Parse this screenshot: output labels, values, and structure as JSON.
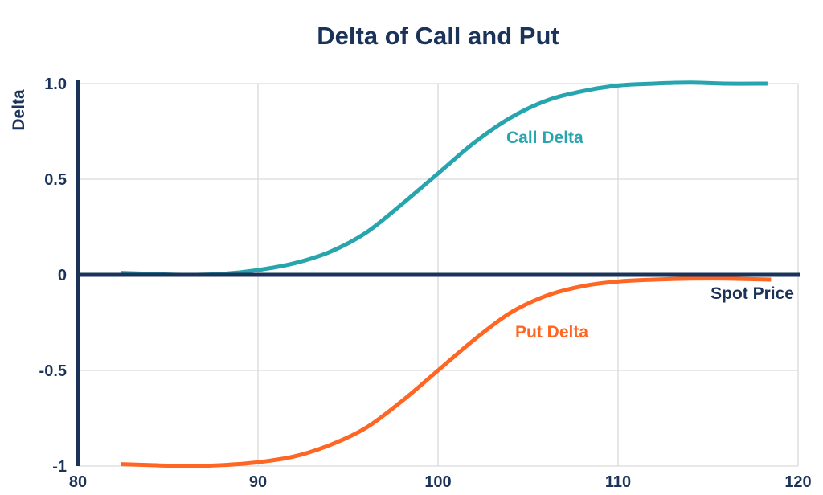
{
  "chart_data": {
    "type": "line",
    "title": "Delta of Call and Put",
    "xlabel": "Spot Price",
    "ylabel": "Delta",
    "xlim": [
      80,
      120
    ],
    "ylim": [
      -1,
      1
    ],
    "x_ticks": [
      "80",
      "90",
      "100",
      "110",
      "120"
    ],
    "y_ticks": [
      "-1",
      "-0.5",
      "0",
      "0.5",
      "1.0"
    ],
    "grid": true,
    "series": [
      {
        "name": "Call Delta",
        "color": "#26A5AE",
        "x": [
          82.4,
          84,
          86,
          88,
          90,
          92,
          94,
          96,
          98,
          100,
          102,
          104,
          106,
          108,
          110,
          112,
          114,
          116,
          118.3
        ],
        "y": [
          0.01,
          0.005,
          0.0,
          0.005,
          0.025,
          0.06,
          0.12,
          0.22,
          0.37,
          0.53,
          0.69,
          0.82,
          0.91,
          0.96,
          0.99,
          1.0,
          1.005,
          1.0,
          1.0
        ]
      },
      {
        "name": "Put Delta",
        "color": "#FF6624",
        "x": [
          82.4,
          84,
          86,
          88,
          90,
          92,
          94,
          96,
          98,
          100,
          102,
          104,
          106,
          108,
          110,
          112,
          114,
          116,
          118.5
        ],
        "y": [
          -0.99,
          -0.995,
          -1.0,
          -0.995,
          -0.98,
          -0.95,
          -0.89,
          -0.8,
          -0.66,
          -0.5,
          -0.34,
          -0.2,
          -0.11,
          -0.06,
          -0.035,
          -0.025,
          -0.02,
          -0.02,
          -0.025
        ]
      }
    ]
  }
}
